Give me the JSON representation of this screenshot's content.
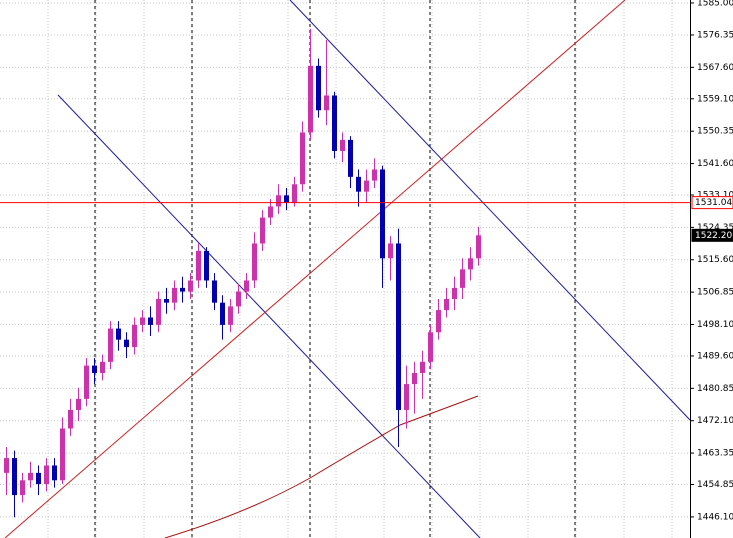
{
  "chart_data": {
    "type": "candlestick",
    "up_color": "#cc33aa",
    "down_color": "#0000b0",
    "open": [
      1458,
      1462,
      1452,
      1456,
      1458,
      1455,
      1460,
      1456,
      1470,
      1475,
      1478,
      1487,
      1485,
      1488,
      1497,
      1494,
      1492,
      1498,
      1500,
      1498,
      1505,
      1504,
      1508,
      1507,
      1510,
      1518,
      1510,
      1504,
      1498,
      1503,
      1507,
      1510,
      1520,
      1527,
      1530,
      1533,
      1531,
      1536,
      1550,
      1568,
      1556,
      1560,
      1545,
      1548,
      1538,
      1534,
      1537,
      1540,
      1516,
      1520,
      1475,
      1482,
      1485,
      1488,
      1496,
      1502,
      1505,
      1508,
      1513,
      1516
    ],
    "high": [
      1465,
      1464,
      1458,
      1461,
      1460,
      1462,
      1462,
      1473,
      1478,
      1481,
      1489,
      1489,
      1490,
      1499,
      1499,
      1496,
      1500,
      1502,
      1503,
      1507,
      1508,
      1510,
      1511,
      1512,
      1520,
      1519,
      1512,
      1506,
      1505,
      1509,
      1512,
      1523,
      1529,
      1532,
      1536,
      1535,
      1538,
      1553,
      1578,
      1570,
      1575,
      1561,
      1550,
      1549,
      1540,
      1540,
      1543,
      1541,
      1522,
      1524,
      1487,
      1488,
      1491,
      1498,
      1505,
      1508,
      1511,
      1516,
      1519,
      1524.5
    ],
    "low": [
      1452,
      1446,
      1450,
      1454,
      1452,
      1453,
      1454,
      1455,
      1468,
      1472,
      1476,
      1482,
      1483,
      1486,
      1491,
      1489,
      1490,
      1496,
      1495,
      1496,
      1501,
      1502,
      1504,
      1505,
      1508,
      1508,
      1502,
      1494,
      1496,
      1501,
      1505,
      1508,
      1518,
      1525,
      1528,
      1529,
      1530,
      1534,
      1548,
      1554,
      1552,
      1543,
      1542,
      1535,
      1530,
      1531,
      1535,
      1508,
      1510,
      1465,
      1470,
      1474,
      1478,
      1486,
      1494,
      1500,
      1502,
      1505,
      1510,
      1514
    ],
    "close": [
      1462,
      1452,
      1456,
      1458,
      1455,
      1460,
      1456,
      1470,
      1475,
      1478,
      1487,
      1485,
      1488,
      1497,
      1494,
      1492,
      1498,
      1500,
      1498,
      1505,
      1504,
      1508,
      1507,
      1510,
      1518,
      1510,
      1504,
      1498,
      1503,
      1507,
      1510,
      1520,
      1527,
      1530,
      1533,
      1531,
      1536,
      1550,
      1568,
      1556,
      1560,
      1545,
      1548,
      1538,
      1534,
      1537,
      1540,
      1516,
      1520,
      1475,
      1482,
      1485,
      1488,
      1496,
      1502,
      1505,
      1508,
      1513,
      1516,
      1522.2
    ],
    "ylim": [
      1440.4,
      1585.8
    ],
    "yticks": [
      {
        "value": 1585,
        "label": "1585.00"
      },
      1576.35,
      {
        "value": 1567.6,
        "label": "1567.60"
      },
      {
        "value": 1559.1,
        "label": "1559.10"
      },
      1550.35,
      {
        "value": 1541.6,
        "label": "1541.60"
      },
      {
        "value": 1533.1,
        "label": "1533.10"
      },
      1524.35,
      {
        "value": 1515.6,
        "label": "1515.60"
      },
      1506.85,
      {
        "value": 1498.1,
        "label": "1498.10"
      },
      {
        "value": 1489.6,
        "label": "1489.60"
      },
      1480.85,
      {
        "value": 1472.1,
        "label": "1472.10"
      },
      1463.35,
      1454.85,
      {
        "value": 1446.1,
        "label": "1446.10"
      }
    ],
    "grid": true,
    "price_labels": [
      {
        "value": 1531.04,
        "label": "1531.04",
        "color": "#ff0000",
        "line": true
      },
      {
        "value": 1522.2,
        "label": "1522.20",
        "color": "#000000",
        "line": false
      }
    ]
  }
}
